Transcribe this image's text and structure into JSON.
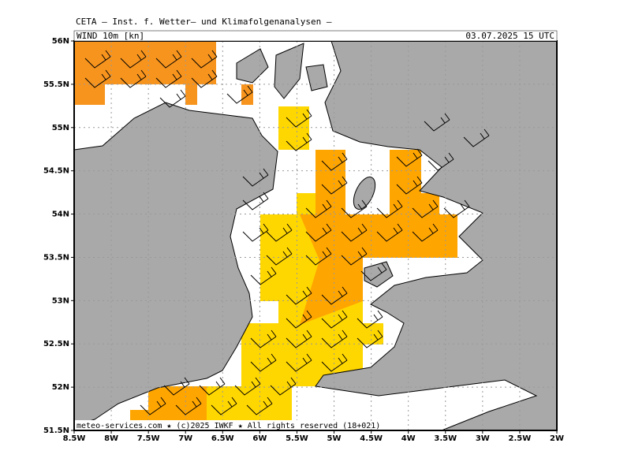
{
  "header": "CETA — Inst. f. Wetter— und Klimafolgenanalysen —",
  "title": "WIND 10m [kn]",
  "date": "03.07.2025 15 UTC",
  "footer": "meteo-services.com ★ (c)2025 IWKF ★ All rights reserved (18+021)",
  "lon_labels": [
    "8.5W",
    "8W",
    "7.5W",
    "7W",
    "6.5W",
    "6W",
    "5.5W",
    "5W",
    "4.5W",
    "4W",
    "3.5W",
    "3W",
    "2.5W",
    "2W"
  ],
  "lat_labels": [
    "56N",
    "55.5N",
    "55N",
    "54.5N",
    "54N",
    "53.5N",
    "53N",
    "52.5N",
    "52N",
    "51.5N"
  ]
}
